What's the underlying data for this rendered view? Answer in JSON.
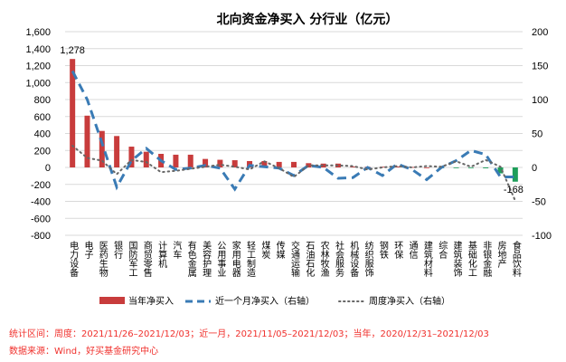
{
  "chart_data": {
    "type": "bar",
    "title": "北向资金净买入 分行业（亿元）",
    "categories": [
      "电力设备",
      "电子",
      "医药生物",
      "银行",
      "国防军工",
      "商贸零售",
      "计算机",
      "汽车",
      "有色金属",
      "美容护理",
      "公用事业",
      "家用电器",
      "轻工制造",
      "煤炭",
      "传媒",
      "交通运输",
      "石油石化",
      "农林牧渔",
      "社会服务",
      "机械设备",
      "纺织服饰",
      "钢铁",
      "环保",
      "通信",
      "建筑材料",
      "综合",
      "建筑装饰",
      "基础化工",
      "非银金融",
      "房地产",
      "食品饮料"
    ],
    "series": [
      {
        "name": "当年净买入",
        "axis": "left",
        "type": "bar",
        "values": [
          1278,
          610,
          430,
          370,
          245,
          185,
          160,
          150,
          150,
          100,
          90,
          85,
          75,
          75,
          65,
          65,
          50,
          45,
          45,
          10,
          8,
          8,
          10,
          5,
          0,
          -3,
          -5,
          -5,
          -10,
          -70,
          -168
        ]
      },
      {
        "name": "近一个月净买入（右轴）",
        "axis": "right",
        "type": "line-dashed",
        "values": [
          142,
          100,
          36,
          -29,
          10,
          28,
          10,
          -3,
          -1,
          3,
          -1,
          -32,
          3,
          1,
          -1,
          -12,
          3,
          0,
          -16,
          -15,
          0,
          -12,
          5,
          -3,
          -18,
          0,
          10,
          25,
          19,
          -14,
          -14
        ]
      },
      {
        "name": "周度净买入（右轴）",
        "axis": "right",
        "type": "line-dotted",
        "values": [
          32,
          14,
          10,
          -10,
          11,
          8,
          -7,
          -5,
          -2,
          1,
          4,
          1,
          -3,
          9,
          -1,
          -14,
          3,
          3,
          3,
          2,
          -3,
          0,
          2,
          0,
          2,
          1,
          9,
          1,
          11,
          1,
          -49
        ]
      }
    ],
    "data_labels": [
      {
        "index": 0,
        "text": "1,278"
      },
      {
        "index": 30,
        "text": "-168"
      }
    ],
    "ylim_left": [
      -800,
      1600
    ],
    "ylim_right": [
      -100,
      200
    ],
    "yticks_left": [
      "1,600",
      "1,400",
      "1,200",
      "1,000",
      "800",
      "600",
      "400",
      "200",
      "0",
      "-200",
      "-400",
      "-600",
      "-800"
    ],
    "yticks_right": [
      "200",
      "150",
      "100",
      "50",
      "0",
      "-50",
      "-100"
    ],
    "grid": true,
    "legend_position": "bottom",
    "colors": {
      "bar_pos": "#c83c3c",
      "bar_neg": "#1e9e5a",
      "month": "#3a7bb5",
      "week": "#666666"
    }
  },
  "footer": {
    "line1": "统计区间：周度：2021/11/26–2021/12/03；近一月，2021/11/05–2021/12/03；当年，2020/12/31–2021/12/03",
    "line2": "数据来源：Wind，好买基金研究中心"
  }
}
